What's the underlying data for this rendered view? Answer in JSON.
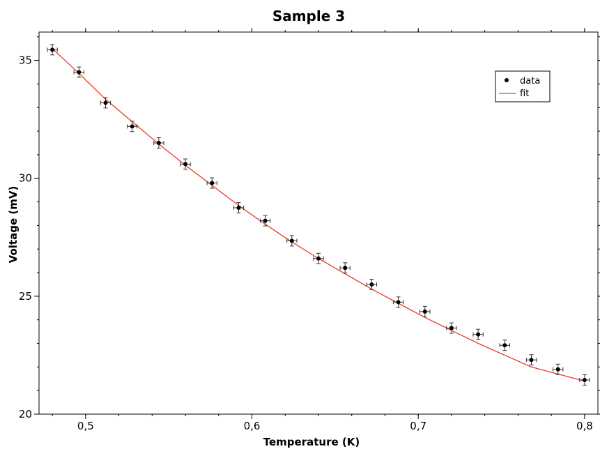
{
  "chart_data": {
    "type": "scatter",
    "title": "Sample 3",
    "xlabel": "Temperature (K)",
    "ylabel": "Voltage (mV)",
    "xlim": [
      0.472,
      0.808
    ],
    "ylim": [
      20,
      36.2
    ],
    "x_ticks": [
      0.5,
      0.6,
      0.7,
      0.8
    ],
    "x_tick_labels": [
      "0,5",
      "0,6",
      "0,7",
      "0,8"
    ],
    "y_ticks": [
      20,
      25,
      30,
      35
    ],
    "y_tick_labels": [
      "20",
      "25",
      "30",
      "35"
    ],
    "grid": false,
    "legend_position": "top-right",
    "colors": {
      "data": "#000000",
      "fit": "#e8392c",
      "errorbar": "#333333"
    },
    "series": [
      {
        "name": "data",
        "kind": "points",
        "x": [
          0.48,
          0.496,
          0.512,
          0.528,
          0.544,
          0.56,
          0.576,
          0.592,
          0.608,
          0.624,
          0.64,
          0.656,
          0.672,
          0.688,
          0.704,
          0.72,
          0.736,
          0.752,
          0.768,
          0.784,
          0.8
        ],
        "y": [
          35.45,
          34.5,
          33.2,
          32.2,
          31.5,
          30.6,
          29.8,
          28.75,
          28.2,
          27.35,
          26.6,
          26.2,
          25.5,
          24.75,
          24.35,
          23.65,
          23.38,
          22.92,
          22.3,
          21.9,
          21.45
        ],
        "x_err": 0.003,
        "y_err": 0.22
      },
      {
        "name": "fit",
        "kind": "line",
        "x": [
          0.48,
          0.496,
          0.512,
          0.528,
          0.544,
          0.56,
          0.576,
          0.592,
          0.608,
          0.624,
          0.64,
          0.656,
          0.672,
          0.688,
          0.704,
          0.72,
          0.736,
          0.752,
          0.768,
          0.784,
          0.8
        ],
        "y": [
          35.5,
          34.45,
          33.35,
          32.4,
          31.45,
          30.55,
          29.7,
          28.85,
          28.05,
          27.3,
          26.6,
          25.95,
          25.3,
          24.7,
          24.1,
          23.55,
          23.0,
          22.5,
          22.0,
          21.7,
          21.4
        ]
      }
    ]
  }
}
